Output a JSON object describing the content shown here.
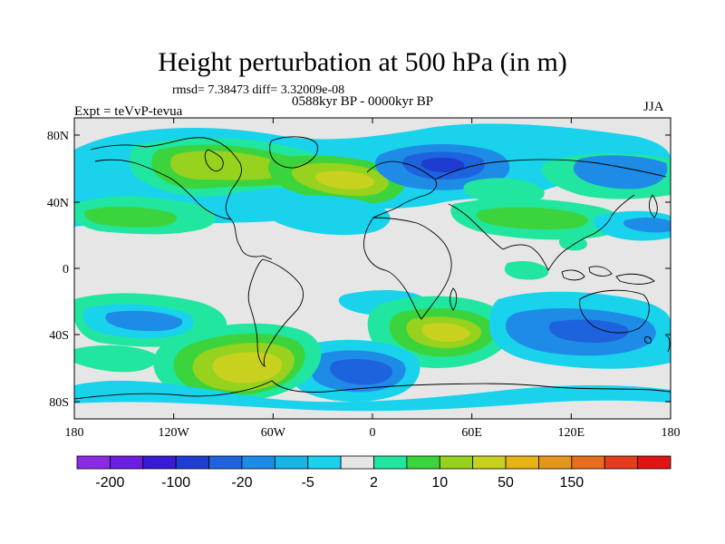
{
  "title": "Height perturbation at 500 hPa (in m)",
  "stats_line": "rmsd= 7.38473 diff= 3.32009e-08",
  "period": "0588kyr BP - 0000kyr BP",
  "experiment": "Expt = teVvP-tevua",
  "season": "JJA",
  "lat_ticks": [
    "80N",
    "40N",
    "0",
    "40S",
    "80S"
  ],
  "lon_ticks": [
    "180",
    "120W",
    "60W",
    "0",
    "60E",
    "120E",
    "180"
  ],
  "colorbar": {
    "colors": [
      "#8a2be2",
      "#6a1ee0",
      "#3a1ad6",
      "#1e3ccf",
      "#1e63de",
      "#1e8ce6",
      "#19b4e6",
      "#19d2ec",
      "#e6e6e6",
      "#20e6a0",
      "#3cd43c",
      "#96d21e",
      "#c8d21e",
      "#e6b414",
      "#e6961e",
      "#e66e1e",
      "#e63c1e",
      "#e01414"
    ],
    "labels": [
      "-200",
      "-100",
      "-20",
      "-5",
      "2",
      "10",
      "50",
      "150"
    ]
  },
  "map_colors": {
    "neutral": "#e6e6e6",
    "coast": "#000000"
  }
}
